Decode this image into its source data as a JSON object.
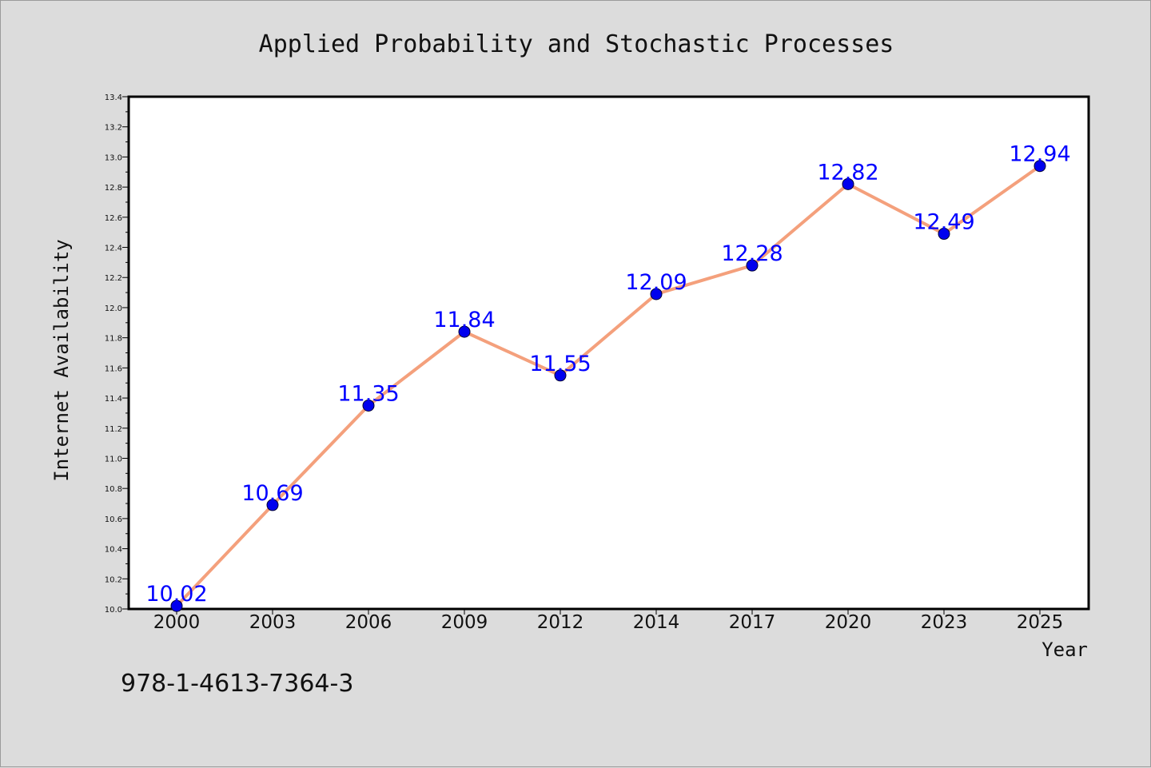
{
  "chart_data": {
    "type": "line",
    "title": "Applied Probability and Stochastic Processes",
    "xlabel": "Year",
    "ylabel": "Internet Availability",
    "categories": [
      "2000",
      "2003",
      "2006",
      "2009",
      "2012",
      "2014",
      "2017",
      "2020",
      "2023",
      "2025"
    ],
    "series": [
      {
        "values": [
          10.02,
          10.69,
          11.35,
          11.84,
          11.55,
          12.09,
          12.28,
          12.82,
          12.49,
          12.94
        ]
      }
    ],
    "data_labels": [
      "10.02",
      "10.69",
      "11.35",
      "11.84",
      "11.55",
      "12.09",
      "12.28",
      "12.82",
      "12.49",
      "12.94"
    ],
    "ylim": [
      10.0,
      13.4
    ],
    "yticks": [
      "10.0",
      "10.2",
      "10.4",
      "10.6",
      "10.8",
      "11.0",
      "11.2",
      "11.4",
      "11.6",
      "11.8",
      "12.0",
      "12.2",
      "12.4",
      "12.6",
      "12.8",
      "13.0",
      "13.2",
      "13.4"
    ],
    "grid": false,
    "legend": "none",
    "colors": {
      "line": "#f4a07c",
      "marker": "#0000ee",
      "label": "#0000ff"
    }
  },
  "footer": {
    "isbn": "978-1-4613-7364-3"
  }
}
